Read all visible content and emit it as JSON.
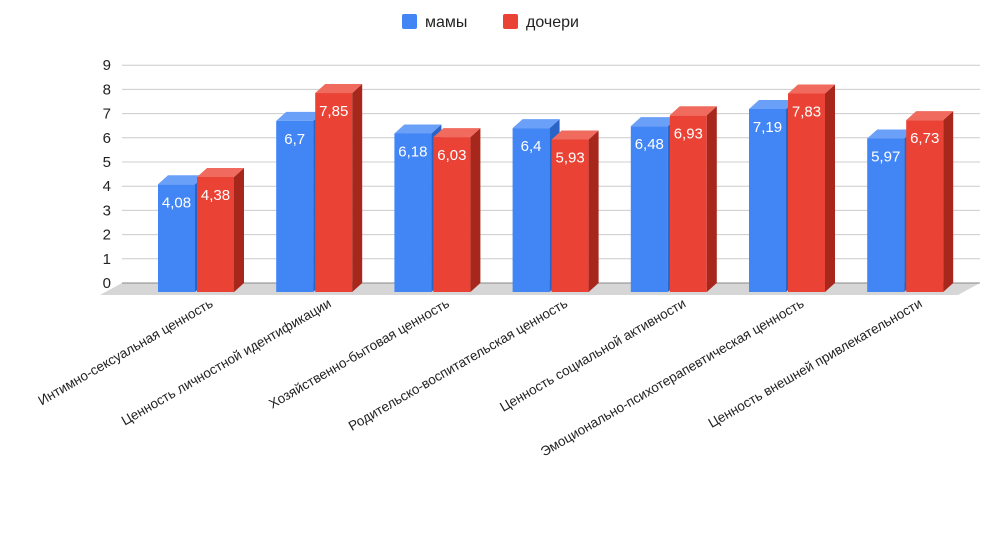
{
  "chart_data": {
    "type": "bar",
    "categories": [
      "Интимно-сексуальная ценность",
      "Ценность личностной идентификации",
      "Хозяйственно-бытовая ценность",
      "Родительско-воспитательская ценность",
      "Ценность социальной активности",
      "Эмоционально-психотерапевтическая ценность",
      "Ценность внешней привлекательности"
    ],
    "series": [
      {
        "name": "мамы",
        "values": [
          4.08,
          6.7,
          6.18,
          6.4,
          6.48,
          7.19,
          5.97
        ],
        "labels": [
          "4,08",
          "6,7",
          "6,18",
          "6,4",
          "6,48",
          "7,19",
          "5,97"
        ],
        "color": "#4285f4",
        "side": "#2a64c7",
        "top": "#6aa0f8"
      },
      {
        "name": "дочери",
        "values": [
          4.38,
          7.85,
          6.03,
          5.93,
          6.93,
          7.83,
          6.73
        ],
        "labels": [
          "4,38",
          "7,85",
          "6,03",
          "5,93",
          "6,93",
          "7,83",
          "6,73"
        ],
        "color": "#ea4335",
        "side": "#a8271c",
        "top": "#f06a5e"
      }
    ],
    "yticks": [
      "0",
      "1",
      "2",
      "3",
      "4",
      "5",
      "6",
      "7",
      "8",
      "9"
    ],
    "ylim": [
      0,
      9
    ],
    "grid": true,
    "legend": "top-center",
    "style": "3d"
  }
}
